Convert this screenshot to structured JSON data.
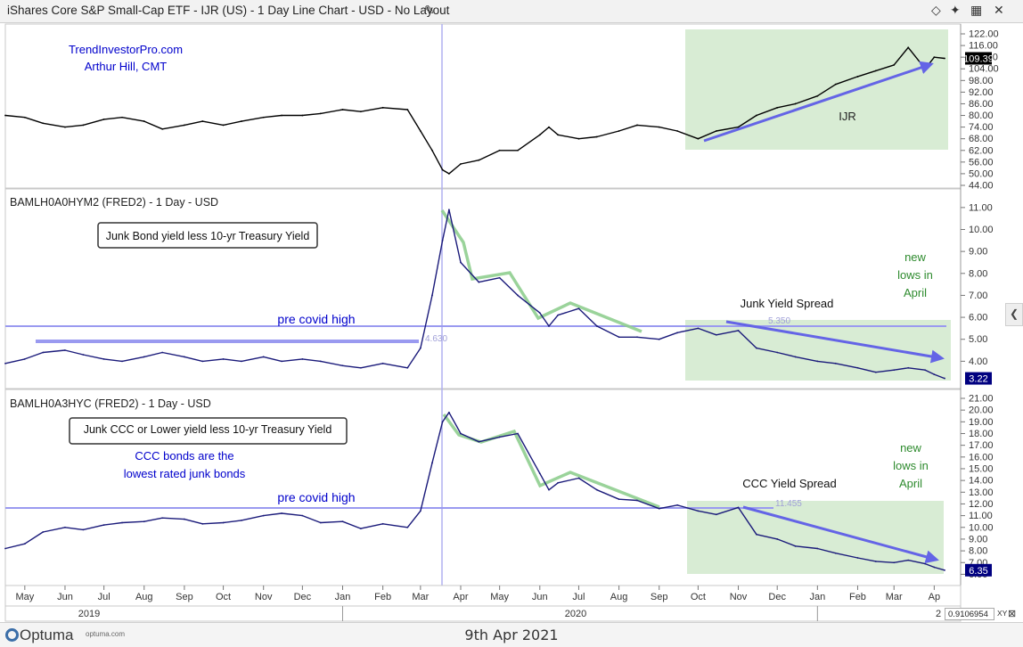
{
  "window": {
    "title": "iShares Core S&P Small-Cap ETF - IJR (US) - 1 Day Line Chart - USD - No Layout",
    "footer_date": "9th Apr 2021",
    "brand": "Optuma",
    "brand_url": "optuma.com",
    "xy_value": "0.9106954",
    "xy_label": "XY"
  },
  "colors": {
    "price_line": "#000000",
    "spread_line": "#1a1a7a",
    "annotation_blue": "#0000cc",
    "green_text": "#2e8b2e",
    "green_box": "#d8ecd4",
    "arrow_blue": "#6464e6",
    "trend_green": "#8fce8f",
    "hline": "#9a9af0"
  },
  "chart_data": [
    {
      "type": "line",
      "id": "ijr",
      "title": "iShares Core S&P Small-Cap ETF - IJR (US) - 1 Day Line Chart - USD - No Layout",
      "ylim": [
        44,
        122
      ],
      "yticks": [
        "44.00",
        "50.00",
        "56.00",
        "62.00",
        "68.00",
        "74.00",
        "80.00",
        "86.00",
        "92.00",
        "98.00",
        "104.00",
        "110.00",
        "116.00",
        "122.00"
      ],
      "last_value": "109.39",
      "x": [
        "2019-04-16",
        "2019-05-01",
        "2019-05-15",
        "2019-06-01",
        "2019-06-15",
        "2019-07-01",
        "2019-07-15",
        "2019-08-01",
        "2019-08-15",
        "2019-09-01",
        "2019-09-15",
        "2019-10-01",
        "2019-10-15",
        "2019-11-01",
        "2019-11-15",
        "2019-12-01",
        "2019-12-15",
        "2020-01-01",
        "2020-01-15",
        "2020-02-01",
        "2020-02-20",
        "2020-03-01",
        "2020-03-10",
        "2020-03-18",
        "2020-03-23",
        "2020-04-01",
        "2020-04-15",
        "2020-05-01",
        "2020-05-15",
        "2020-06-01",
        "2020-06-08",
        "2020-06-15",
        "2020-07-01",
        "2020-07-15",
        "2020-08-01",
        "2020-08-15",
        "2020-09-01",
        "2020-09-15",
        "2020-10-01",
        "2020-10-15",
        "2020-11-01",
        "2020-11-15",
        "2020-12-01",
        "2020-12-15",
        "2021-01-01",
        "2021-01-15",
        "2021-02-01",
        "2021-02-15",
        "2021-03-01",
        "2021-03-12",
        "2021-03-25",
        "2021-04-01",
        "2021-04-09"
      ],
      "y": [
        80,
        79,
        76,
        74,
        75,
        78,
        79,
        77,
        73,
        75,
        77,
        75,
        77,
        79,
        80,
        80,
        81,
        83,
        82,
        84,
        83,
        72,
        62,
        52,
        50,
        55,
        57,
        62,
        62,
        70,
        74,
        70,
        68,
        69,
        72,
        75,
        74,
        72,
        68,
        72,
        74,
        80,
        84,
        86,
        90,
        96,
        100,
        103,
        106,
        115,
        104,
        110,
        109.39
      ],
      "annotations": {
        "brand": "TrendInvestorPro.com",
        "author": "Arthur Hill, CMT",
        "box_label": "IJR"
      }
    },
    {
      "type": "line",
      "id": "junk",
      "title": "BAMLH0A0HYM2 (FRED2) - 1 Day - USD",
      "ylim": [
        3,
        11.4
      ],
      "yticks": [
        "4.00",
        "5.00",
        "6.00",
        "7.00",
        "8.00",
        "9.00",
        "10.00",
        "11.00"
      ],
      "last_value": "3.22",
      "x": [
        "2019-04-16",
        "2019-05-01",
        "2019-05-15",
        "2019-06-01",
        "2019-06-15",
        "2019-07-01",
        "2019-07-15",
        "2019-08-01",
        "2019-08-15",
        "2019-09-01",
        "2019-09-15",
        "2019-10-01",
        "2019-10-15",
        "2019-11-01",
        "2019-11-15",
        "2019-12-01",
        "2019-12-15",
        "2020-01-01",
        "2020-01-15",
        "2020-02-01",
        "2020-02-20",
        "2020-03-01",
        "2020-03-10",
        "2020-03-18",
        "2020-03-23",
        "2020-04-01",
        "2020-04-15",
        "2020-05-01",
        "2020-05-15",
        "2020-06-01",
        "2020-06-08",
        "2020-06-15",
        "2020-07-01",
        "2020-07-15",
        "2020-08-01",
        "2020-08-15",
        "2020-09-01",
        "2020-09-15",
        "2020-10-01",
        "2020-10-15",
        "2020-11-01",
        "2020-11-15",
        "2020-12-01",
        "2020-12-15",
        "2021-01-01",
        "2021-01-15",
        "2021-02-01",
        "2021-02-15",
        "2021-03-01",
        "2021-03-12",
        "2021-03-25",
        "2021-04-01",
        "2021-04-09"
      ],
      "y": [
        3.9,
        4.1,
        4.4,
        4.5,
        4.3,
        4.1,
        4.0,
        4.2,
        4.4,
        4.2,
        4.0,
        4.1,
        4.0,
        4.2,
        4.0,
        4.1,
        4.0,
        3.8,
        3.7,
        3.9,
        3.7,
        4.6,
        7.0,
        9.5,
        10.9,
        8.5,
        7.6,
        7.8,
        7.0,
        6.2,
        5.6,
        6.1,
        6.4,
        5.6,
        5.1,
        5.1,
        5.0,
        5.3,
        5.5,
        5.2,
        5.4,
        4.6,
        4.4,
        4.2,
        4.0,
        3.9,
        3.7,
        3.5,
        3.6,
        3.7,
        3.6,
        3.4,
        3.22
      ],
      "annotations": {
        "box_label": "Junk Bond yield less 10-yr Treasury Yield",
        "hline_label": "pre covid high",
        "hline_value": "4.630",
        "mark_value": "5.350",
        "spread_label": "Junk Yield Spread",
        "new_lows": [
          "new",
          "lows in",
          "April"
        ]
      }
    },
    {
      "type": "line",
      "id": "ccc",
      "title": "BAMLH0A3HYC (FRED2) - 1 Day - USD",
      "ylim": [
        5.5,
        21
      ],
      "yticks": [
        "6.00",
        "7.00",
        "8.00",
        "9.00",
        "10.00",
        "11.00",
        "12.00",
        "13.00",
        "14.00",
        "15.00",
        "16.00",
        "17.00",
        "18.00",
        "19.00",
        "20.00",
        "21.00"
      ],
      "last_value": "6.35",
      "x": [
        "2019-04-16",
        "2019-05-01",
        "2019-05-15",
        "2019-06-01",
        "2019-06-15",
        "2019-07-01",
        "2019-07-15",
        "2019-08-01",
        "2019-08-15",
        "2019-09-01",
        "2019-09-15",
        "2019-10-01",
        "2019-10-15",
        "2019-11-01",
        "2019-11-15",
        "2019-12-01",
        "2019-12-15",
        "2020-01-01",
        "2020-01-15",
        "2020-02-01",
        "2020-02-20",
        "2020-03-01",
        "2020-03-10",
        "2020-03-18",
        "2020-03-23",
        "2020-04-01",
        "2020-04-15",
        "2020-05-01",
        "2020-05-15",
        "2020-06-01",
        "2020-06-08",
        "2020-06-15",
        "2020-07-01",
        "2020-07-15",
        "2020-08-01",
        "2020-08-15",
        "2020-09-01",
        "2020-09-15",
        "2020-10-01",
        "2020-10-15",
        "2020-11-01",
        "2020-11-15",
        "2020-12-01",
        "2020-12-15",
        "2021-01-01",
        "2021-01-15",
        "2021-02-01",
        "2021-02-15",
        "2021-03-01",
        "2021-03-12",
        "2021-03-25",
        "2021-04-01",
        "2021-04-09"
      ],
      "y": [
        8.2,
        8.6,
        9.6,
        10.0,
        9.8,
        10.2,
        10.4,
        10.5,
        10.8,
        10.7,
        10.3,
        10.4,
        10.6,
        11.0,
        11.2,
        11.0,
        10.4,
        10.5,
        9.9,
        10.3,
        10.0,
        11.4,
        15.5,
        19.0,
        19.8,
        18.0,
        17.3,
        17.7,
        18.0,
        14.6,
        13.2,
        13.8,
        14.2,
        13.2,
        12.4,
        12.3,
        11.6,
        11.9,
        11.4,
        11.1,
        11.7,
        9.4,
        9.0,
        8.4,
        8.2,
        7.8,
        7.4,
        7.1,
        7.0,
        7.2,
        6.9,
        6.6,
        6.35
      ],
      "annotations": {
        "box_label": "Junk CCC or Lower yield less 10-yr Treasury Yield",
        "note_line1": "CCC bonds are the",
        "note_line2": "lowest rated junk bonds",
        "hline_label": "pre covid high",
        "hline_value": "11.455",
        "spread_label": "CCC Yield Spread",
        "new_lows": [
          "new",
          "lows in",
          "April"
        ]
      }
    }
  ],
  "x_axis": {
    "months": [
      "May",
      "Jun",
      "Jul",
      "Aug",
      "Sep",
      "Oct",
      "Nov",
      "Dec",
      "Jan",
      "Feb",
      "Mar",
      "Apr",
      "May",
      "Jun",
      "Jul",
      "Aug",
      "Sep",
      "Oct",
      "Nov",
      "Dec",
      "Jan",
      "Feb",
      "Mar",
      "Ap"
    ],
    "month_dates": [
      "2019-05-01",
      "2019-06-01",
      "2019-07-01",
      "2019-08-01",
      "2019-09-01",
      "2019-10-01",
      "2019-11-01",
      "2019-12-01",
      "2020-01-01",
      "2020-02-01",
      "2020-03-01",
      "2020-04-01",
      "2020-05-01",
      "2020-06-01",
      "2020-07-01",
      "2020-08-01",
      "2020-09-01",
      "2020-10-01",
      "2020-11-01",
      "2020-12-01",
      "2021-01-01",
      "2021-02-01",
      "2021-03-01",
      "2021-04-01"
    ],
    "years": [
      "2019",
      "2020",
      "2"
    ],
    "year_dates": [
      "2019-04-16",
      "2020-01-01",
      "2021-01-01"
    ]
  }
}
